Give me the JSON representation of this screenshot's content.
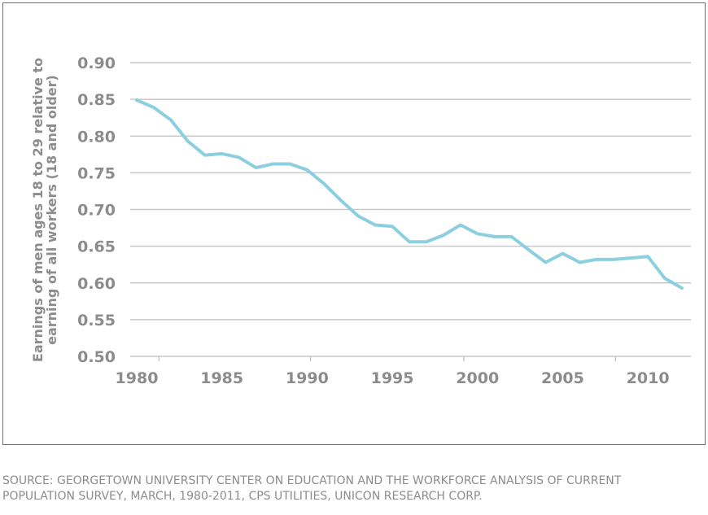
{
  "chart_data": {
    "type": "line",
    "title": "",
    "xlabel": "",
    "ylabel_lines": [
      "Earnings of men ages 18 to 29 relative to",
      "earning of all workers (18 and older)"
    ],
    "xlim": [
      1980,
      2012
    ],
    "ylim": [
      0.5,
      0.9
    ],
    "x_ticks": [
      1980,
      1985,
      1990,
      1995,
      2000,
      2005,
      2010
    ],
    "x_tick_labels": [
      "1980",
      "1985",
      "1990",
      "1995",
      "2000",
      "2005",
      "2010"
    ],
    "y_ticks": [
      0.5,
      0.55,
      0.6,
      0.65,
      0.7,
      0.75,
      0.8,
      0.85,
      0.9
    ],
    "y_tick_labels": [
      "0.50",
      "0.55",
      "0.60",
      "0.65",
      "0.70",
      "0.75",
      "0.80",
      "0.85",
      "0.90"
    ],
    "grid": true,
    "line_color": "#8ccfe0",
    "grid_color": "#c8c8c8",
    "x": [
      1980,
      1981,
      1982,
      1983,
      1984,
      1985,
      1986,
      1987,
      1988,
      1989,
      1990,
      1991,
      1992,
      1993,
      1994,
      1995,
      1996,
      1997,
      1998,
      1999,
      2000,
      2001,
      2002,
      2003,
      2004,
      2005,
      2006,
      2007,
      2008,
      2009,
      2010,
      2011,
      2012
    ],
    "y": [
      0.849,
      0.839,
      0.822,
      0.793,
      0.774,
      0.776,
      0.771,
      0.757,
      0.762,
      0.762,
      0.754,
      0.735,
      0.712,
      0.691,
      0.679,
      0.677,
      0.656,
      0.656,
      0.665,
      0.679,
      0.667,
      0.663,
      0.663,
      0.645,
      0.628,
      0.64,
      0.628,
      0.632,
      0.632,
      0.634,
      0.636,
      0.606,
      0.593
    ]
  },
  "source": {
    "line1": "SOURCE: GEORGETOWN UNIVERSITY CENTER ON EDUCATION AND THE WORKFORCE ANALYSIS OF CURRENT",
    "line2": "POPULATION SURVEY, MARCH, 1980-2011, CPS UTILITIES, UNICON RESEARCH CORP."
  }
}
